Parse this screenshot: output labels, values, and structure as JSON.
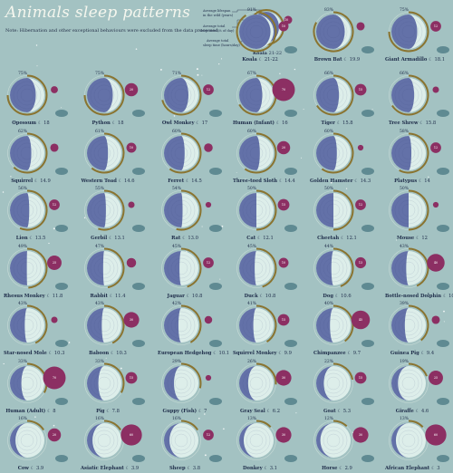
{
  "title": "Animals sleep patterns",
  "note": "Note: Hibernation and other exceptional behaviours were excluded from the data processed.",
  "legend": {
    "text_a": "Average lifespan",
    "text_b": "in the wild (years)",
    "text_c": "Average total",
    "text_d": "sleep time (% of day)",
    "text_e": "Average total",
    "text_f": "sleep time (hours/day)",
    "example_name": "Koala",
    "example_hours": "21-22",
    "example_badge": "10"
  },
  "colors": {
    "background": "#a3c2c2",
    "sleep": "#6371a8",
    "sleep_dark": "#3c4878",
    "awake": "#ddeeea",
    "ring": "#8a7430",
    "badge": "#8c2f63",
    "silhouette": "#5f8a92"
  },
  "chart_data": {
    "type": "radial",
    "title": "Animals sleep patterns",
    "columns": 6,
    "animals": [
      {
        "name": "Koala",
        "hours": "21-22",
        "pct": 91,
        "lifespan": 10,
        "icon": "koala-icon"
      },
      {
        "name": "Brown Bat",
        "hours": "19.9",
        "pct": 83,
        "lifespan": 6,
        "icon": "bat-icon"
      },
      {
        "name": "Giant Armadillo",
        "hours": "18.1",
        "pct": 75,
        "lifespan": 12,
        "icon": "armadillo-icon"
      },
      {
        "name": "Opossum",
        "hours": "18",
        "pct": 75,
        "lifespan": 4,
        "icon": "opossum-icon"
      },
      {
        "name": "Python",
        "hours": "18",
        "pct": 75,
        "lifespan": 20,
        "icon": "snake-icon"
      },
      {
        "name": "Owl Monkey",
        "hours": "17",
        "pct": 71,
        "lifespan": 12,
        "icon": "monkey-icon"
      },
      {
        "name": "Human (Infant)",
        "hours": "16",
        "pct": 67,
        "lifespan": 70,
        "icon": "infant-icon"
      },
      {
        "name": "Tiger",
        "hours": "15.8",
        "pct": 66,
        "lifespan": 15,
        "icon": "tiger-icon"
      },
      {
        "name": "Tree Shrew",
        "hours": "15.8",
        "pct": 66,
        "lifespan": 3,
        "icon": "shrew-icon"
      },
      {
        "name": "Squirrel",
        "hours": "14.9",
        "pct": 62,
        "lifespan": 6,
        "icon": "squirrel-icon"
      },
      {
        "name": "Western Toad",
        "hours": "14.6",
        "pct": 61,
        "lifespan": 10,
        "icon": "toad-icon"
      },
      {
        "name": "Ferret",
        "hours": "14.5",
        "pct": 60,
        "lifespan": 7,
        "icon": "ferret-icon"
      },
      {
        "name": "Three-toed Sloth",
        "hours": "14.4",
        "pct": 60,
        "lifespan": 20,
        "icon": "sloth-icon"
      },
      {
        "name": "Golden Hamster",
        "hours": "14.3",
        "pct": 60,
        "lifespan": 2,
        "icon": "hamster-icon"
      },
      {
        "name": "Platypus",
        "hours": "14",
        "pct": 58,
        "lifespan": 12,
        "icon": "platypus-icon"
      },
      {
        "name": "Lion",
        "hours": "13.5",
        "pct": 56,
        "lifespan": 12,
        "icon": "lion-icon"
      },
      {
        "name": "Gerbil",
        "hours": "13.1",
        "pct": 55,
        "lifespan": 3,
        "icon": "gerbil-icon"
      },
      {
        "name": "Rat",
        "hours": "13.0",
        "pct": 54,
        "lifespan": 2,
        "icon": "rat-icon"
      },
      {
        "name": "Cat",
        "hours": "12.1",
        "pct": 50,
        "lifespan": 15,
        "icon": "cat-icon"
      },
      {
        "name": "Cheetah",
        "hours": "12.1",
        "pct": 50,
        "lifespan": 12,
        "icon": "cheetah-icon"
      },
      {
        "name": "Mouse",
        "hours": "12",
        "pct": 50,
        "lifespan": 2,
        "icon": "mouse-icon"
      },
      {
        "name": "Rhesus Monkey",
        "hours": "11.8",
        "pct": 49,
        "lifespan": 25,
        "icon": "monkey-icon"
      },
      {
        "name": "Rabbit",
        "hours": "11.4",
        "pct": 47,
        "lifespan": 9,
        "icon": "rabbit-icon"
      },
      {
        "name": "Jaguar",
        "hours": "10.8",
        "pct": 45,
        "lifespan": 12,
        "icon": "jaguar-icon"
      },
      {
        "name": "Duck",
        "hours": "10.8",
        "pct": 45,
        "lifespan": 10,
        "icon": "duck-icon"
      },
      {
        "name": "Dog",
        "hours": "10.6",
        "pct": 44,
        "lifespan": 13,
        "icon": "dog-icon"
      },
      {
        "name": "Bottle-nosed Dolphin",
        "hours": "10.4",
        "pct": 43,
        "lifespan": 40,
        "icon": "dolphin-icon"
      },
      {
        "name": "Star-nosed Mole",
        "hours": "10.3",
        "pct": 43,
        "lifespan": 3,
        "icon": "mole-icon"
      },
      {
        "name": "Baboon",
        "hours": "10.3",
        "pct": 43,
        "lifespan": 30,
        "icon": "baboon-icon"
      },
      {
        "name": "European Hedgehog",
        "hours": "10.1",
        "pct": 42,
        "lifespan": 5,
        "icon": "hedgehog-icon"
      },
      {
        "name": "Squirrel Monkey",
        "hours": "9.9",
        "pct": 41,
        "lifespan": 15,
        "icon": "monkey-icon"
      },
      {
        "name": "Chimpanzee",
        "hours": "9.7",
        "pct": 40,
        "lifespan": 45,
        "icon": "chimpanzee-icon"
      },
      {
        "name": "Guinea Pig",
        "hours": "9.4",
        "pct": 39,
        "lifespan": 6,
        "icon": "guinea-pig-icon"
      },
      {
        "name": "Human (Adult)",
        "hours": "8",
        "pct": 33,
        "lifespan": 70,
        "icon": "human-icon"
      },
      {
        "name": "Pig",
        "hours": "7.8",
        "pct": 33,
        "lifespan": 15,
        "icon": "pig-icon"
      },
      {
        "name": "Guppy (Fish)",
        "hours": "7",
        "pct": 29,
        "lifespan": 2,
        "icon": "fish-icon"
      },
      {
        "name": "Gray Seal",
        "hours": "6.2",
        "pct": 26,
        "lifespan": 30,
        "icon": "seal-icon"
      },
      {
        "name": "Goat",
        "hours": "5.3",
        "pct": 22,
        "lifespan": 15,
        "icon": "goat-icon"
      },
      {
        "name": "Giraffe",
        "hours": "4.6",
        "pct": 19,
        "lifespan": 25,
        "icon": "giraffe-icon"
      },
      {
        "name": "Cow",
        "hours": "3.9",
        "pct": 16,
        "lifespan": 20,
        "icon": "cow-icon"
      },
      {
        "name": "Asiatic Elephant",
        "hours": "3.9",
        "pct": 16,
        "lifespan": 60,
        "icon": "elephant-icon"
      },
      {
        "name": "Sheep",
        "hours": "3.8",
        "pct": 16,
        "lifespan": 12,
        "icon": "sheep-icon"
      },
      {
        "name": "Donkey",
        "hours": "3.1",
        "pct": 13,
        "lifespan": 30,
        "icon": "donkey-icon"
      },
      {
        "name": "Horse",
        "hours": "2.9",
        "pct": 12,
        "lifespan": 30,
        "icon": "horse-icon"
      },
      {
        "name": "African Elephant",
        "hours": "3",
        "pct": 13,
        "lifespan": 60,
        "icon": "elephant-icon"
      }
    ]
  }
}
